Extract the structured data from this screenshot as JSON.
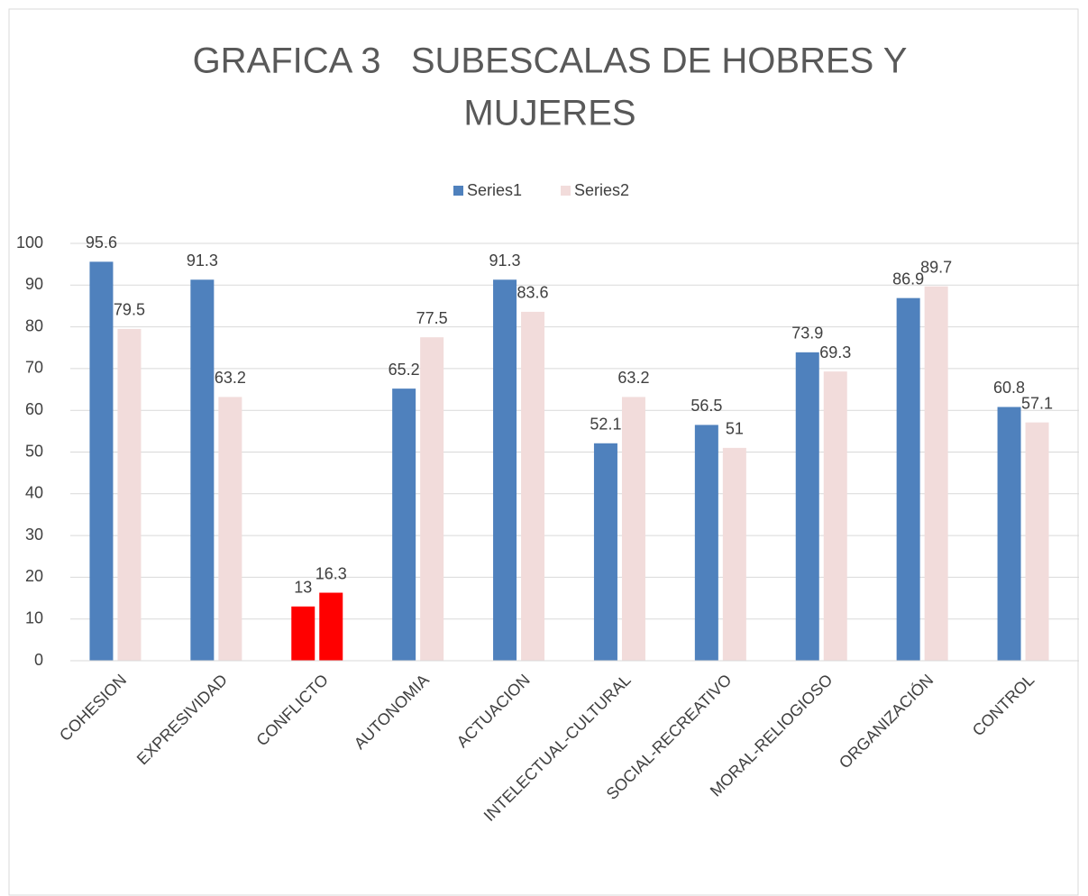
{
  "chart_data": {
    "type": "bar",
    "title": [
      "GRAFICA 3   SUBESCALAS DE HOBRES Y",
      "MUJERES"
    ],
    "categories": [
      "COHESION",
      "EXPRESIVIDAD",
      "CONFLICTO",
      "AUTONOMIA",
      "ACTUACION",
      "INTELECTUAL-CULTURAL",
      "SOCIAL-RECREATIVO",
      "MORAL-RELIOGIOSO",
      "ORGANIZACIÓN",
      "CONTROL"
    ],
    "series": [
      {
        "name": "Series1",
        "color": "#4f81bd",
        "values": [
          95.6,
          91.3,
          13,
          65.2,
          91.3,
          52.1,
          56.5,
          73.9,
          86.9,
          60.8
        ],
        "colors": [
          "#4f81bd",
          "#4f81bd",
          "#ff0000",
          "#4f81bd",
          "#4f81bd",
          "#4f81bd",
          "#4f81bd",
          "#4f81bd",
          "#4f81bd",
          "#4f81bd"
        ]
      },
      {
        "name": "Series2",
        "color": "#f2dcdb",
        "values": [
          79.5,
          63.2,
          16.3,
          77.5,
          83.6,
          63.2,
          51,
          69.3,
          89.7,
          57.1
        ],
        "colors": [
          "#f2dcdb",
          "#f2dcdb",
          "#ff0000",
          "#f2dcdb",
          "#f2dcdb",
          "#f2dcdb",
          "#f2dcdb",
          "#f2dcdb",
          "#f2dcdb",
          "#f2dcdb"
        ]
      }
    ],
    "ylim": [
      0,
      100
    ],
    "yticks": [
      0,
      10,
      20,
      30,
      40,
      50,
      60,
      70,
      80,
      90,
      100
    ],
    "grid": true,
    "legend": "top"
  }
}
